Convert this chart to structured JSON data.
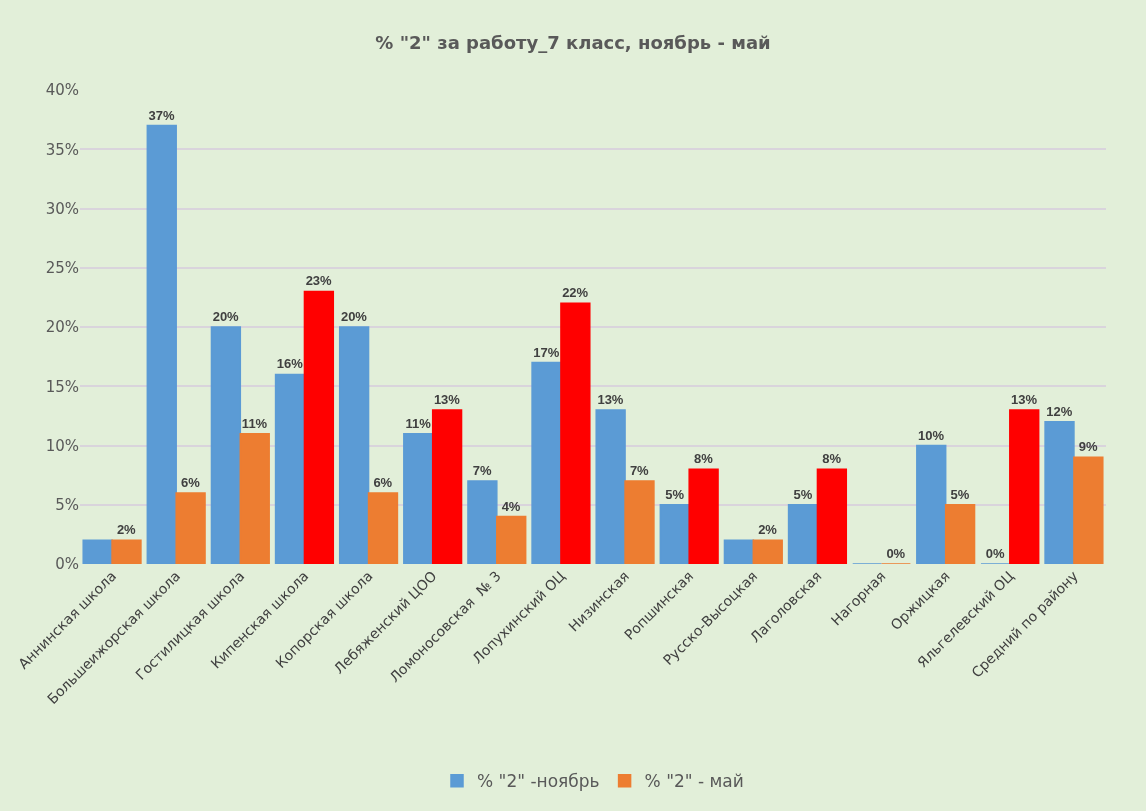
{
  "chart_data": {
    "type": "bar",
    "title": "% \"2\" за работу_7 класс, ноябрь - май",
    "categories": [
      "Аннинская школа",
      "Большеижорская школа",
      "Гостилицкая школа",
      "Кипенская школа",
      "Копорская школа",
      "Лебяженский ЦОО",
      "Ломоносовская  № 3",
      "Лопухинский ОЦ",
      "Низинская",
      "Ропшинская",
      "Русско-Высоцкая",
      "Лаголовская",
      "Нагорная",
      "Оржицкая",
      "Яльгелевский ОЦ",
      "Средний по району"
    ],
    "series": [
      {
        "name": "% \"2\" -ноябрь",
        "color": "#5b9bd5",
        "values": [
          2,
          37,
          20,
          16,
          20,
          11,
          7,
          17,
          13,
          5,
          2,
          5,
          0,
          10,
          0,
          12
        ],
        "value_labels": [
          null,
          "37%",
          "20%",
          "16%",
          "20%",
          "11%",
          "7%",
          "17%",
          "13%",
          "5%",
          null,
          "5%",
          null,
          "10%",
          "0%",
          "12%"
        ]
      },
      {
        "name": "% \"2\" - май",
        "color": "#ed7d31",
        "colors": [
          "#ed7d31",
          "#ed7d31",
          "#ed7d31",
          "#ff0000",
          "#ed7d31",
          "#ff0000",
          "#ed7d31",
          "#ff0000",
          "#ed7d31",
          "#ff0000",
          "#ed7d31",
          "#ff0000",
          "#ed7d31",
          "#ed7d31",
          "#ff0000",
          "#ed7d31"
        ],
        "values": [
          2,
          6,
          11,
          23,
          6,
          13,
          4,
          22,
          7,
          8,
          2,
          8,
          0,
          5,
          13,
          9
        ],
        "value_labels": [
          "2%",
          "6%",
          "11%",
          "23%",
          "6%",
          "13%",
          "4%",
          "22%",
          "7%",
          "8%",
          "2%",
          "8%",
          "0%",
          "5%",
          "13%",
          "9%"
        ]
      }
    ],
    "ylim": [
      0,
      40
    ],
    "yticks": [
      {
        "value": 0,
        "label": "0%"
      },
      {
        "value": 5,
        "label": "5%"
      },
      {
        "value": 10,
        "label": "10%"
      },
      {
        "value": 15,
        "label": "15%"
      },
      {
        "value": 20,
        "label": "20%"
      },
      {
        "value": 25,
        "label": "25%"
      },
      {
        "value": 30,
        "label": "30%"
      },
      {
        "value": 35,
        "label": "35%"
      },
      {
        "value": 40,
        "label": "40%"
      }
    ],
    "grid": "y",
    "legend": "bottom"
  }
}
